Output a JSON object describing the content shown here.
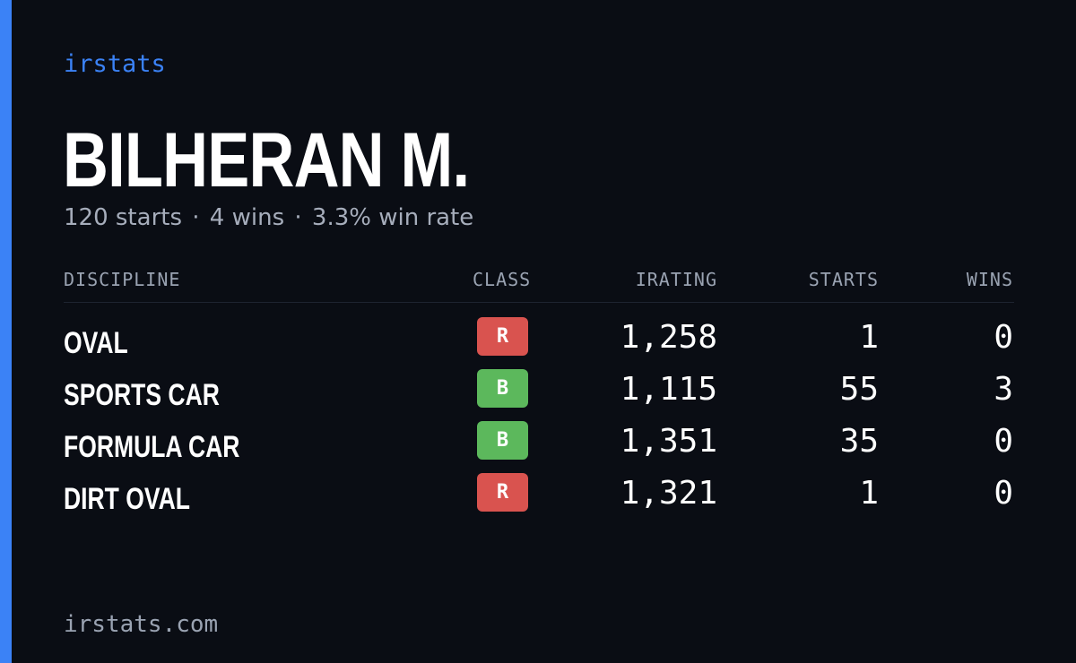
{
  "brand": "irstats",
  "driver": {
    "name": "BILHERAN M.",
    "starts_text": "120 starts",
    "wins_text": "4 wins",
    "win_rate_text": "3.3% win rate",
    "separator": "·"
  },
  "table": {
    "headers": {
      "discipline": "DISCIPLINE",
      "class": "CLASS",
      "irating": "IRATING",
      "starts": "STARTS",
      "wins": "WINS"
    },
    "rows": [
      {
        "discipline": "OVAL",
        "class": "R",
        "irating": "1,258",
        "starts": "1",
        "wins": "0"
      },
      {
        "discipline": "SPORTS CAR",
        "class": "B",
        "irating": "1,115",
        "starts": "55",
        "wins": "3"
      },
      {
        "discipline": "FORMULA CAR",
        "class": "B",
        "irating": "1,351",
        "starts": "35",
        "wins": "0"
      },
      {
        "discipline": "DIRT OVAL",
        "class": "R",
        "irating": "1,321",
        "starts": "1",
        "wins": "0"
      }
    ]
  },
  "footer": "irstats.com",
  "colors": {
    "background": "#0a0d14",
    "accent": "#3b82f6",
    "class_r": "#d9534f",
    "class_b": "#5cb85c",
    "muted_text": "#a6adbb"
  }
}
